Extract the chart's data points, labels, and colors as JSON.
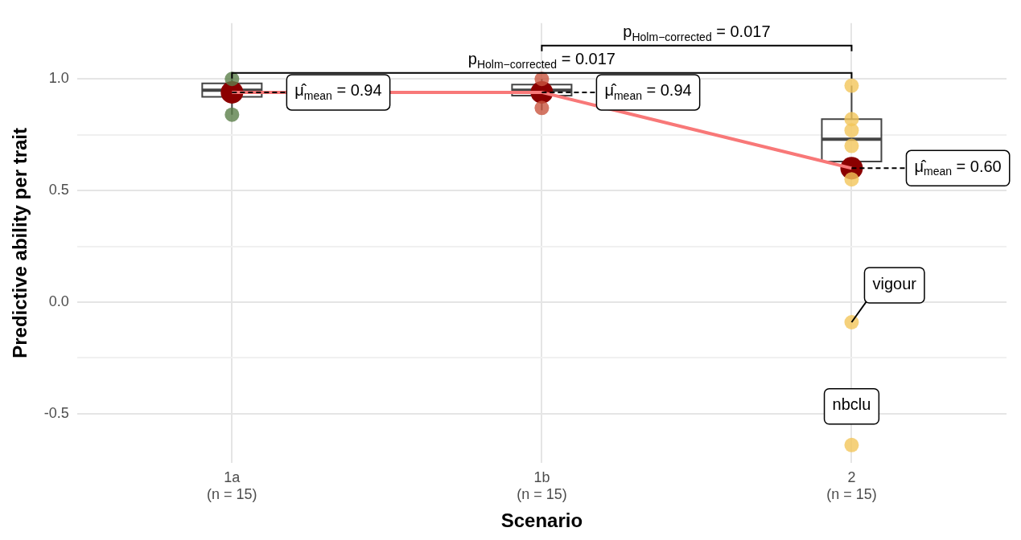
{
  "chart_data": {
    "type": "box",
    "xlabel": "Scenario",
    "ylabel": "Predictive ability per trait",
    "categories": [
      "1a\n(n = 15)",
      "1b\n(n = 15)",
      "2\n(n = 15)"
    ],
    "boxes": [
      {
        "low": 0.84,
        "q1": 0.92,
        "median": 0.95,
        "q3": 0.98,
        "high": 1.0,
        "mean": 0.94
      },
      {
        "low": 0.86,
        "q1": 0.925,
        "median": 0.95,
        "q3": 0.975,
        "high": 1.0,
        "mean": 0.94
      },
      {
        "low": 0.55,
        "q1": 0.63,
        "median": 0.73,
        "q3": 0.82,
        "high": 0.97,
        "mean": 0.6
      }
    ],
    "series": [
      {
        "type": "scatter",
        "color": "#5b7f4a",
        "x": [
          "1a\n(n = 15)",
          "1a\n(n = 15)"
        ],
        "values": [
          1.0,
          0.84
        ]
      },
      {
        "type": "scatter",
        "color": "#c9553f",
        "x": [
          "1b\n(n = 15)",
          "1b\n(n = 15)",
          "1b\n(n = 15)"
        ],
        "values": [
          1.0,
          null,
          0.87
        ]
      },
      {
        "type": "scatter",
        "color": "#f3c65a",
        "x": [
          "2\n(n = 15)",
          "2\n(n = 15)",
          "2\n(n = 15)",
          "2\n(n = 15)",
          "2\n(n = 15)",
          "2\n(n = 15)",
          "2\n(n = 15)",
          "2\n(n = 15)",
          "2\n(n = 15)",
          "2\n(n = 15)"
        ],
        "values": [
          0.97,
          null,
          0.82,
          0.77,
          null,
          0.7,
          null,
          0.55,
          -0.09,
          -0.64
        ]
      },
      {
        "type": "line",
        "color": "#f87878",
        "values": [
          0.94,
          0.94,
          0.6
        ]
      }
    ],
    "ylim": [
      -0.72,
      1.25
    ],
    "yticks": [
      {
        "value": -0.5,
        "label": "-0.5"
      },
      {
        "value": -0.25,
        "label": null
      },
      {
        "value": 0,
        "label": "0.0"
      },
      {
        "value": 0.25,
        "label": null
      },
      {
        "value": 0.5,
        "label": "0.5"
      },
      {
        "value": 0.75,
        "label": null
      },
      {
        "value": 1,
        "label": "1.0"
      }
    ],
    "grid": true,
    "legend": false,
    "annotations": [
      "p$_{Holm−corrected}$ = 0.017",
      "p$_{Holm−corrected}$ = 0.017",
      {
        "text": "μ̂$_{mean}$ = 0.94",
        "x": "1a\n(n = 15)",
        "y": 0.94
      },
      {
        "text": "μ̂$_{mean}$ = 0.94",
        "x": "1b\n(n = 15)",
        "y": 0.94
      },
      {
        "text": "μ̂$_{mean}$ = 0.60",
        "x": "2\n(n = 15)",
        "y": 0.6
      },
      {
        "text": "vigour",
        "x": "2\n(n = 15)",
        "y": -0.09
      },
      {
        "text": "nbclu",
        "x": "2\n(n = 15)",
        "y": -0.64
      }
    ]
  }
}
